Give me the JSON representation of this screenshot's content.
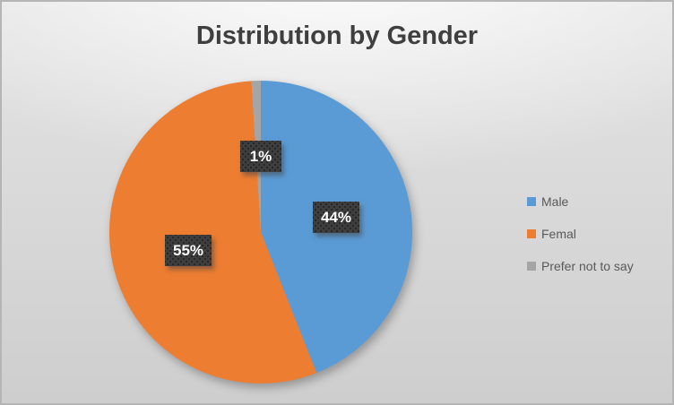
{
  "title": "Distribution by Gender",
  "chart_data": {
    "type": "pie",
    "title": "Distribution by Gender",
    "categories": [
      "Male",
      "Femal",
      "Prefer not to say"
    ],
    "values": [
      44,
      55,
      1
    ],
    "value_unit": "percent",
    "colors": [
      "#5B9BD5",
      "#ED7D31",
      "#A5A5A5"
    ],
    "data_labels": [
      "44%",
      "55%",
      "1%"
    ],
    "start_angle_deg": 0,
    "direction": "clockwise",
    "legend_position": "right",
    "grid": false
  },
  "legend": {
    "items": [
      {
        "label": "Male",
        "color": "#5B9BD5"
      },
      {
        "label": "Femal",
        "color": "#ED7D31"
      },
      {
        "label": "Prefer not to say",
        "color": "#A5A5A5"
      }
    ]
  },
  "data_labels": {
    "male": "44%",
    "femal": "55%",
    "prefer_not_to_say": "1%"
  }
}
